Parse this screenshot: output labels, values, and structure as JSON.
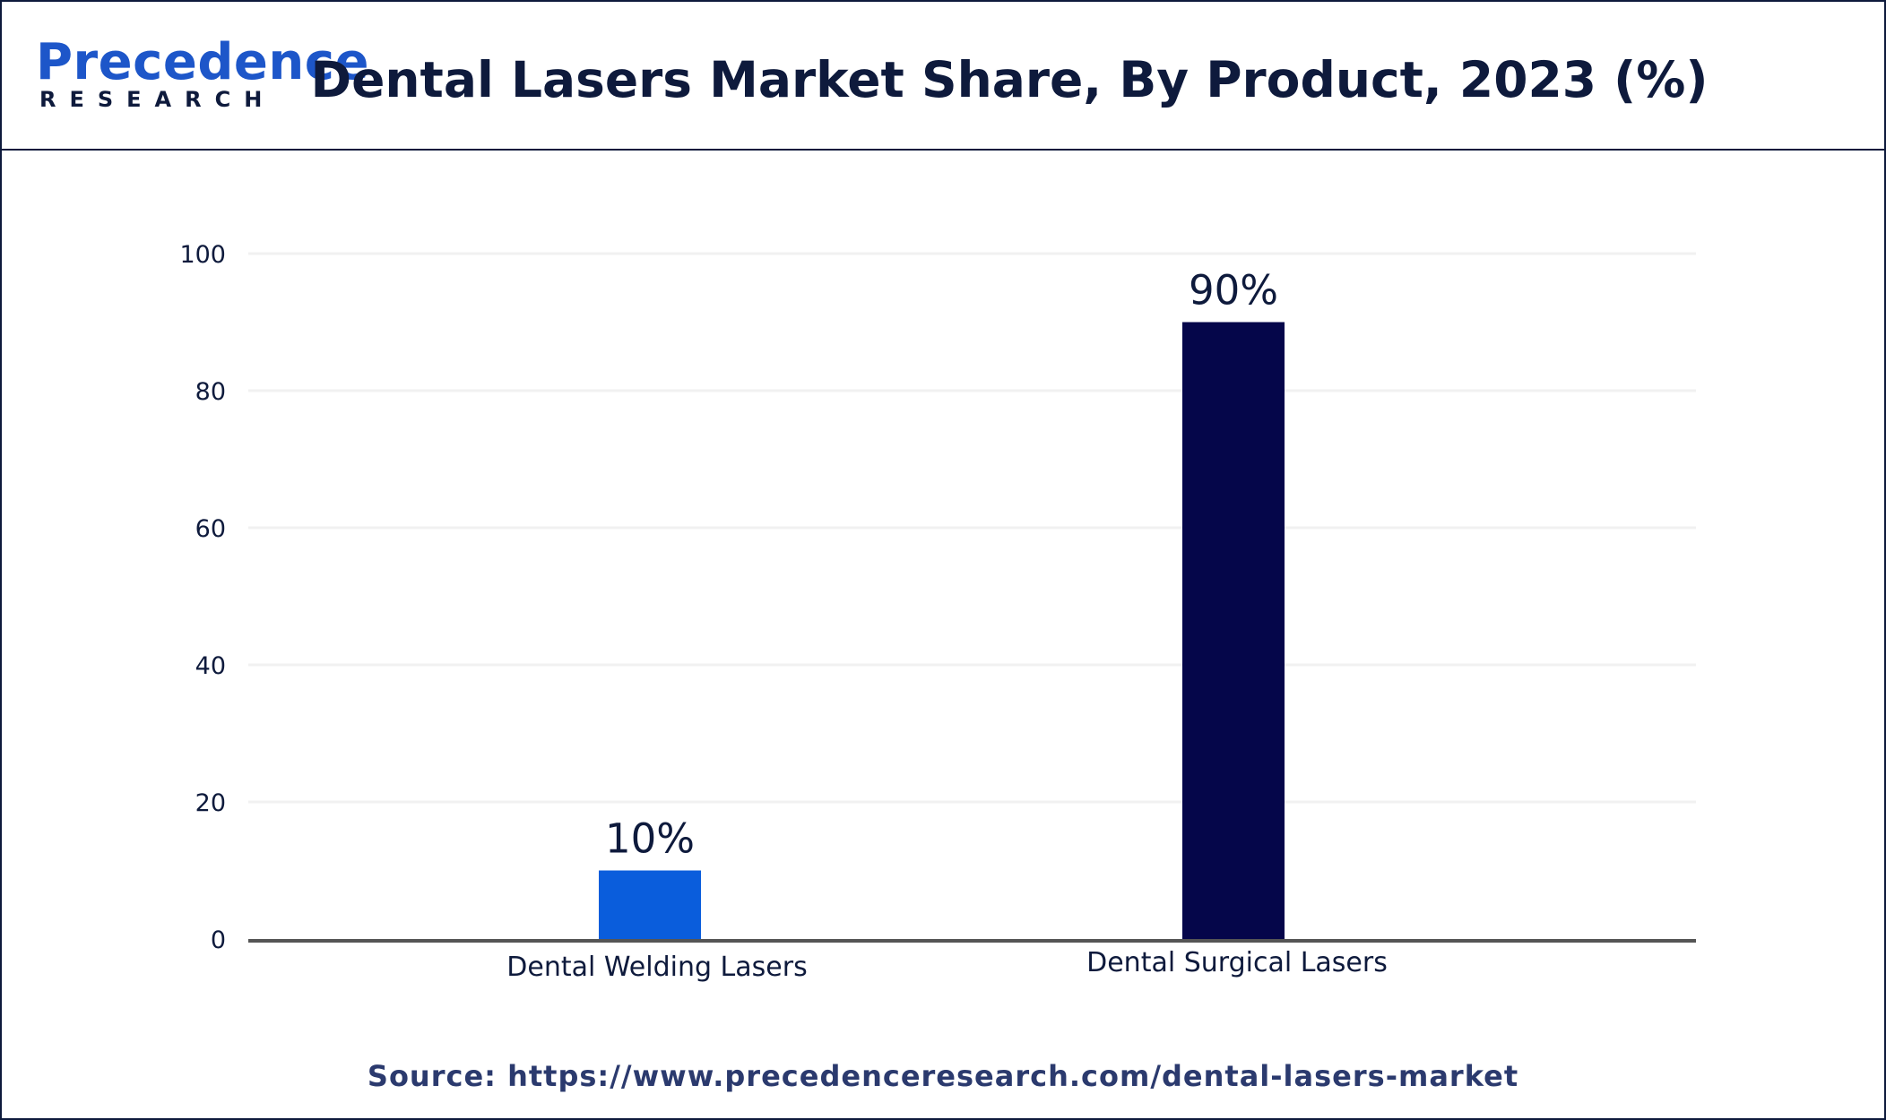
{
  "header": {
    "logo_main": "Precedence",
    "logo_sub": "RESEARCH",
    "title": "Dental Lasers Market Share, By Product, 2023 (%)"
  },
  "footer": {
    "source": "Source: https://www.precedenceresearch.com/dental-lasers-market"
  },
  "colors": {
    "welding": "#0a5ddc",
    "surgical": "#05064a",
    "text": "#0e1a3c",
    "axis": "#555555",
    "grid": "#f1f1f1"
  },
  "chart_data": {
    "type": "bar",
    "title": "Dental Lasers Market Share, By Product, 2023 (%)",
    "categories": [
      "Dental Welding Lasers",
      "Dental Surgical Lasers"
    ],
    "values": [
      10,
      90
    ],
    "data_labels": [
      "10%",
      "90%"
    ],
    "bar_colors": [
      "#0a5ddc",
      "#05064a"
    ],
    "xlabel": "",
    "ylabel": "",
    "ylim": [
      0,
      100
    ],
    "yticks": [
      0,
      20,
      40,
      60,
      80,
      100
    ],
    "grid": true,
    "legend": "none"
  }
}
